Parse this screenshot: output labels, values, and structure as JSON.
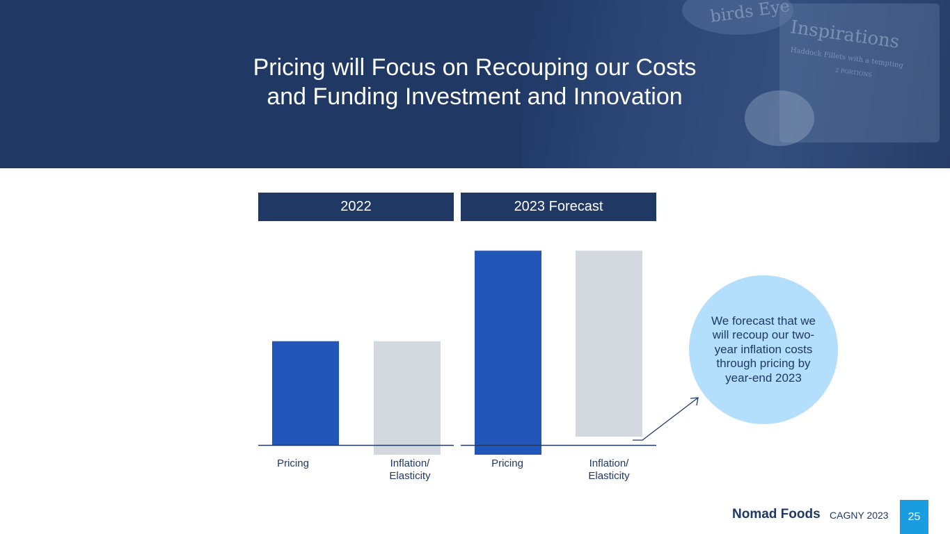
{
  "slide": {
    "title_line1": "Pricing will Focus on Recouping our Costs",
    "title_line2": "and Funding Investment and Innovation",
    "brand": "Nomad Foods",
    "event": "CAGNY 2023",
    "page_number": "25",
    "callout": "We forecast that we will recoup our two-year inflation costs through pricing by year-end 2023",
    "background_pack_text": [
      "birds Eye",
      "Inspirations",
      "Haddock Fillets with a tempting",
      "2 PORTIONS"
    ]
  },
  "chart_data": {
    "type": "bar",
    "periods": [
      "2022",
      "2023 Forecast"
    ],
    "categories": [
      "Pricing",
      "Inflation/ Elasticity",
      "Pricing",
      "Inflation/ Elasticity"
    ],
    "note": "no numeric axis or data labels shown; values are relative bar magnitudes estimated from bar sizes",
    "values": [
      10.7,
      -10.7,
      20.0,
      -20.0
    ],
    "colors": [
      "#2257b9",
      "#d4d8df",
      "#2257b9",
      "#d4d8df"
    ],
    "axis_color": "#1f3864",
    "callout_color": "#b3defc",
    "header_color": "#1f3864"
  }
}
